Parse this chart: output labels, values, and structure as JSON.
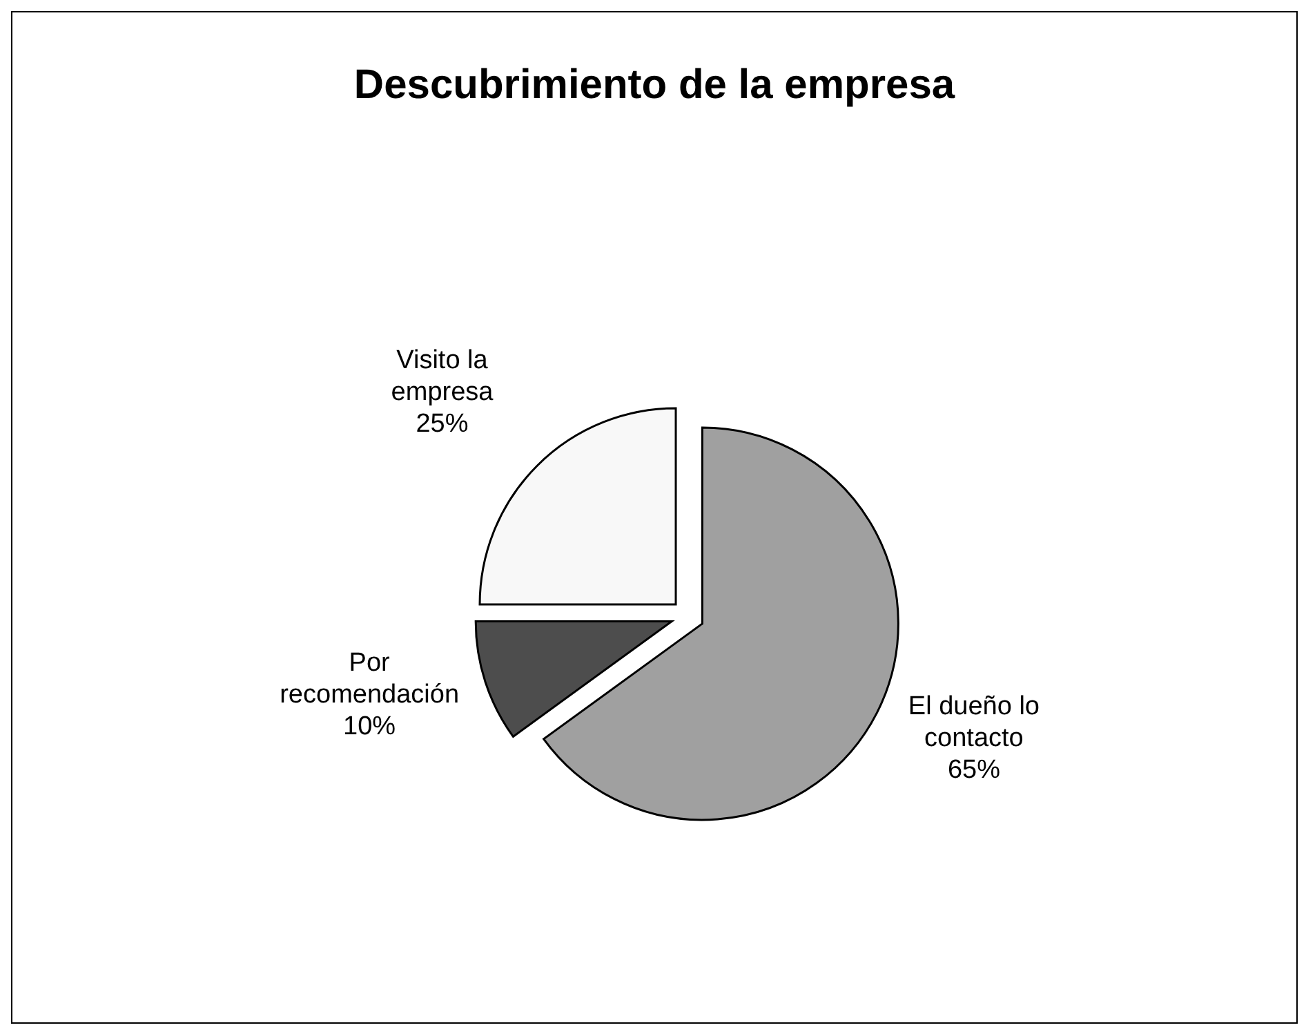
{
  "chart_data": {
    "type": "pie",
    "title": "Descubrimiento de la empresa",
    "categories": [
      "El dueño lo contacto",
      "Por recomendación",
      "Visito  la empresa"
    ],
    "values": [
      65,
      10,
      25
    ],
    "colors": [
      "#a0a0a0",
      "#4d4d4d",
      "#f8f8f8"
    ],
    "value_labels": [
      "65%",
      "10%",
      "25%"
    ]
  }
}
